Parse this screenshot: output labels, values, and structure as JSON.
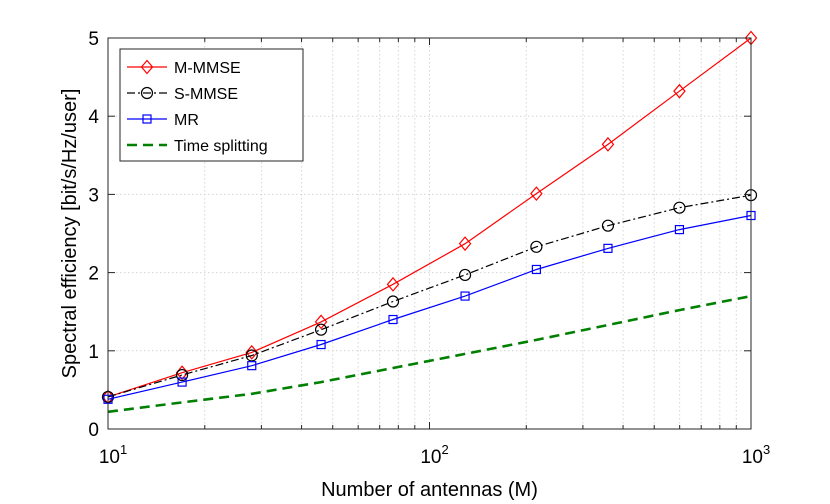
{
  "chart_data": {
    "type": "line",
    "title": "",
    "xlabel": "Number of antennas (M)",
    "ylabel": "Spectral efficiency [bit/s/Hz/user]",
    "xscale": "log",
    "xlim": [
      10,
      1000
    ],
    "ylim": [
      0,
      5
    ],
    "grid": true,
    "legend_position": "top-left",
    "x_ticks": [
      {
        "base": "10",
        "exp": "1",
        "value": 10
      },
      {
        "base": "10",
        "exp": "2",
        "value": 100
      },
      {
        "base": "10",
        "exp": "3",
        "value": 1000
      }
    ],
    "y_ticks": [
      "0",
      "1",
      "2",
      "3",
      "4",
      "5"
    ],
    "series": [
      {
        "name": "M-MMSE",
        "color": "#ff0000",
        "marker": "diamond",
        "dash": "solid",
        "x": [
          10,
          17,
          28,
          46,
          77,
          129,
          215,
          359,
          599,
          1000
        ],
        "y": [
          0.41,
          0.72,
          0.98,
          1.37,
          1.85,
          2.37,
          3.01,
          3.64,
          4.32,
          5.0
        ]
      },
      {
        "name": "S-MMSE",
        "color": "#000000",
        "marker": "circle",
        "dash": "dashdot",
        "x": [
          10,
          17,
          28,
          46,
          77,
          129,
          215,
          359,
          599,
          1000
        ],
        "y": [
          0.41,
          0.69,
          0.94,
          1.27,
          1.63,
          1.97,
          2.33,
          2.6,
          2.83,
          2.99
        ]
      },
      {
        "name": "MR",
        "color": "#0000ff",
        "marker": "square",
        "dash": "solid",
        "x": [
          10,
          17,
          28,
          46,
          77,
          129,
          215,
          359,
          599,
          1000
        ],
        "y": [
          0.38,
          0.6,
          0.81,
          1.08,
          1.4,
          1.7,
          2.04,
          2.31,
          2.55,
          2.73
        ]
      },
      {
        "name": "Time splitting",
        "color": "#008000",
        "marker": "none",
        "dash": "dashed",
        "x": [
          10,
          17,
          28,
          46,
          77,
          129,
          215,
          359,
          599,
          1000
        ],
        "y": [
          0.22,
          0.34,
          0.45,
          0.6,
          0.78,
          0.96,
          1.14,
          1.33,
          1.52,
          1.7
        ]
      }
    ]
  }
}
